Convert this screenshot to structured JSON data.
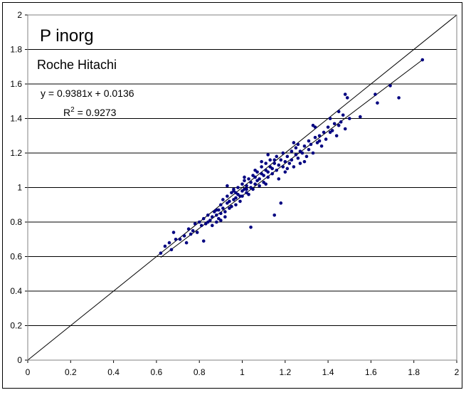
{
  "chart_data": {
    "type": "scatter",
    "title": "P inorg",
    "subtitle": "Roche Hitachi",
    "equation": "y = 0.9381x + 0.0136",
    "r2_label": "R",
    "r2_sup": "2",
    "r2_value": " = 0.9273",
    "xlim": [
      0,
      2
    ],
    "ylim": [
      0,
      2
    ],
    "xticks": [
      "0",
      "0.2",
      "0.4",
      "0.6",
      "0.8",
      "1",
      "1.2",
      "1.4",
      "1.6",
      "1.8",
      "2"
    ],
    "yticks": [
      "0",
      "0.2",
      "0.4",
      "0.6",
      "0.8",
      "1",
      "1.2",
      "1.4",
      "1.6",
      "1.8",
      "2"
    ],
    "grid": "horizontal",
    "point_color": "#000080",
    "regression": {
      "slope": 0.9381,
      "intercept": 0.0136,
      "x_range": [
        0.62,
        1.84
      ]
    },
    "identity_line": {
      "x_range": [
        0,
        2
      ]
    },
    "points": [
      [
        0.62,
        0.62
      ],
      [
        0.64,
        0.66
      ],
      [
        0.66,
        0.68
      ],
      [
        0.67,
        0.64
      ],
      [
        0.68,
        0.74
      ],
      [
        0.69,
        0.7
      ],
      [
        0.71,
        0.7
      ],
      [
        0.73,
        0.72
      ],
      [
        0.74,
        0.68
      ],
      [
        0.75,
        0.76
      ],
      [
        0.76,
        0.73
      ],
      [
        0.77,
        0.75
      ],
      [
        0.78,
        0.79
      ],
      [
        0.79,
        0.74
      ],
      [
        0.8,
        0.8
      ],
      [
        0.81,
        0.78
      ],
      [
        0.82,
        0.82
      ],
      [
        0.82,
        0.69
      ],
      [
        0.83,
        0.79
      ],
      [
        0.84,
        0.84
      ],
      [
        0.85,
        0.81
      ],
      [
        0.86,
        0.83
      ],
      [
        0.86,
        0.78
      ],
      [
        0.87,
        0.86
      ],
      [
        0.88,
        0.8
      ],
      [
        0.88,
        0.84
      ],
      [
        0.89,
        0.87
      ],
      [
        0.89,
        0.82
      ],
      [
        0.9,
        0.9
      ],
      [
        0.9,
        0.85
      ],
      [
        0.9,
        0.81
      ],
      [
        0.91,
        0.88
      ],
      [
        0.91,
        0.93
      ],
      [
        0.92,
        0.86
      ],
      [
        0.92,
        0.83
      ],
      [
        0.93,
        0.91
      ],
      [
        0.93,
        0.95
      ],
      [
        0.94,
        0.88
      ],
      [
        0.94,
        0.92
      ],
      [
        0.95,
        0.97
      ],
      [
        0.95,
        0.89
      ],
      [
        0.96,
        0.93
      ],
      [
        0.96,
        0.99
      ],
      [
        0.97,
        0.94
      ],
      [
        0.97,
        0.9
      ],
      [
        0.98,
        0.96
      ],
      [
        0.98,
        1.0
      ],
      [
        0.99,
        0.95
      ],
      [
        0.99,
        0.92
      ],
      [
        1.0,
        0.98
      ],
      [
        1.0,
        1.02
      ],
      [
        1.0,
        0.95
      ],
      [
        1.01,
        0.99
      ],
      [
        1.01,
        1.04
      ],
      [
        1.02,
        0.97
      ],
      [
        1.02,
        1.01
      ],
      [
        1.03,
        1.05
      ],
      [
        1.03,
        0.96
      ],
      [
        1.04,
        1.0
      ],
      [
        1.04,
        1.03
      ],
      [
        1.04,
        0.77
      ],
      [
        1.05,
        1.07
      ],
      [
        1.05,
        0.99
      ],
      [
        1.06,
        1.02
      ],
      [
        1.06,
        1.06
      ],
      [
        1.07,
        1.04
      ],
      [
        1.07,
        1.09
      ],
      [
        1.08,
        1.01
      ],
      [
        1.08,
        1.05
      ],
      [
        1.09,
        1.08
      ],
      [
        1.09,
        1.12
      ],
      [
        1.1,
        1.03
      ],
      [
        1.1,
        1.07
      ],
      [
        1.11,
        1.1
      ],
      [
        1.11,
        1.14
      ],
      [
        1.12,
        1.06
      ],
      [
        1.12,
        1.09
      ],
      [
        1.13,
        1.12
      ],
      [
        1.13,
        1.16
      ],
      [
        1.14,
        1.08
      ],
      [
        1.14,
        1.11
      ],
      [
        1.15,
        1.14
      ],
      [
        1.15,
        0.84
      ],
      [
        1.16,
        1.18
      ],
      [
        1.16,
        1.1
      ],
      [
        1.17,
        1.13
      ],
      [
        1.17,
        1.05
      ],
      [
        1.18,
        1.16
      ],
      [
        1.18,
        0.91
      ],
      [
        1.19,
        1.12
      ],
      [
        1.19,
        1.2
      ],
      [
        1.2,
        1.15
      ],
      [
        1.21,
        1.11
      ],
      [
        1.21,
        1.18
      ],
      [
        1.22,
        1.14
      ],
      [
        1.23,
        1.21
      ],
      [
        1.23,
        1.16
      ],
      [
        1.24,
        1.12
      ],
      [
        1.25,
        1.19
      ],
      [
        1.25,
        1.23
      ],
      [
        1.26,
        1.17
      ],
      [
        1.27,
        1.21
      ],
      [
        1.27,
        1.14
      ],
      [
        1.28,
        1.2
      ],
      [
        1.29,
        1.24
      ],
      [
        1.3,
        1.18
      ],
      [
        1.31,
        1.27
      ],
      [
        1.31,
        1.22
      ],
      [
        1.32,
        1.25
      ],
      [
        1.33,
        1.2
      ],
      [
        1.34,
        1.29
      ],
      [
        1.34,
        1.35
      ],
      [
        1.35,
        1.26
      ],
      [
        1.36,
        1.3
      ],
      [
        1.37,
        1.24
      ],
      [
        1.38,
        1.32
      ],
      [
        1.39,
        1.28
      ],
      [
        1.4,
        1.35
      ],
      [
        1.41,
        1.4
      ],
      [
        1.42,
        1.33
      ],
      [
        1.43,
        1.37
      ],
      [
        1.44,
        1.3
      ],
      [
        1.45,
        1.44
      ],
      [
        1.46,
        1.38
      ],
      [
        1.47,
        1.42
      ],
      [
        1.48,
        1.54
      ],
      [
        1.48,
        1.34
      ],
      [
        1.49,
        1.52
      ],
      [
        1.5,
        1.4
      ],
      [
        1.55,
        1.41
      ],
      [
        1.62,
        1.54
      ],
      [
        1.63,
        1.49
      ],
      [
        1.69,
        1.59
      ],
      [
        1.73,
        1.52
      ],
      [
        1.84,
        1.74
      ],
      [
        0.93,
        1.01
      ],
      [
        0.97,
        0.97
      ],
      [
        1.02,
        0.99
      ],
      [
        1.06,
        1.1
      ],
      [
        1.11,
        1.02
      ],
      [
        1.15,
        1.16
      ],
      [
        1.2,
        1.09
      ],
      [
        1.26,
        1.25
      ],
      [
        1.29,
        1.15
      ],
      [
        1.33,
        1.36
      ],
      [
        1.09,
        1.15
      ],
      [
        1.12,
        1.19
      ],
      [
        1.24,
        1.26
      ],
      [
        1.01,
        1.06
      ],
      [
        0.96,
        0.98
      ],
      [
        0.88,
        0.87
      ],
      [
        0.84,
        0.8
      ],
      [
        1.36,
        1.27
      ],
      [
        1.41,
        1.32
      ],
      [
        1.45,
        1.36
      ]
    ]
  }
}
